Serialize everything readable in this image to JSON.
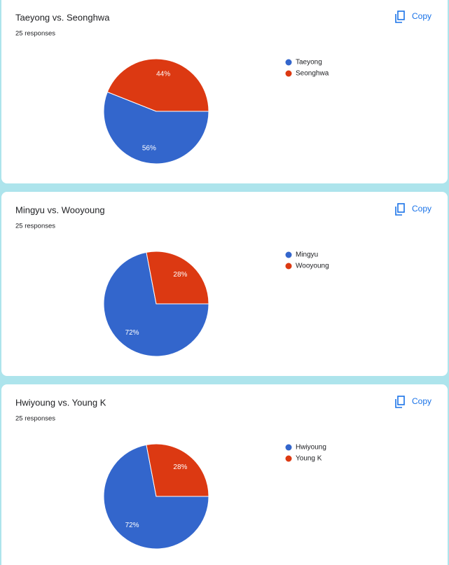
{
  "chart_data": [
    {
      "type": "pie",
      "title": "Taeyong vs. Seonghwa",
      "subtitle": "25 responses",
      "categories": [
        "Taeyong",
        "Seonghwa"
      ],
      "values": [
        56,
        44
      ],
      "value_labels": [
        "56%",
        "44%"
      ],
      "colors": [
        "#3366cc",
        "#dc3912"
      ],
      "legend": "right"
    },
    {
      "type": "pie",
      "title": "Mingyu vs. Wooyoung",
      "subtitle": "25 responses",
      "categories": [
        "Mingyu",
        "Wooyoung"
      ],
      "values": [
        72,
        28
      ],
      "value_labels": [
        "72%",
        "28%"
      ],
      "colors": [
        "#3366cc",
        "#dc3912"
      ],
      "legend": "right"
    },
    {
      "type": "pie",
      "title": "Hwiyoung vs. Young K",
      "subtitle": "25 responses",
      "categories": [
        "Hwiyoung",
        "Young K"
      ],
      "values": [
        72,
        28
      ],
      "value_labels": [
        "72%",
        "28%"
      ],
      "colors": [
        "#3366cc",
        "#dc3912"
      ],
      "legend": "right"
    }
  ],
  "copy_buttons": [
    "Copy",
    "Copy",
    "Copy"
  ]
}
